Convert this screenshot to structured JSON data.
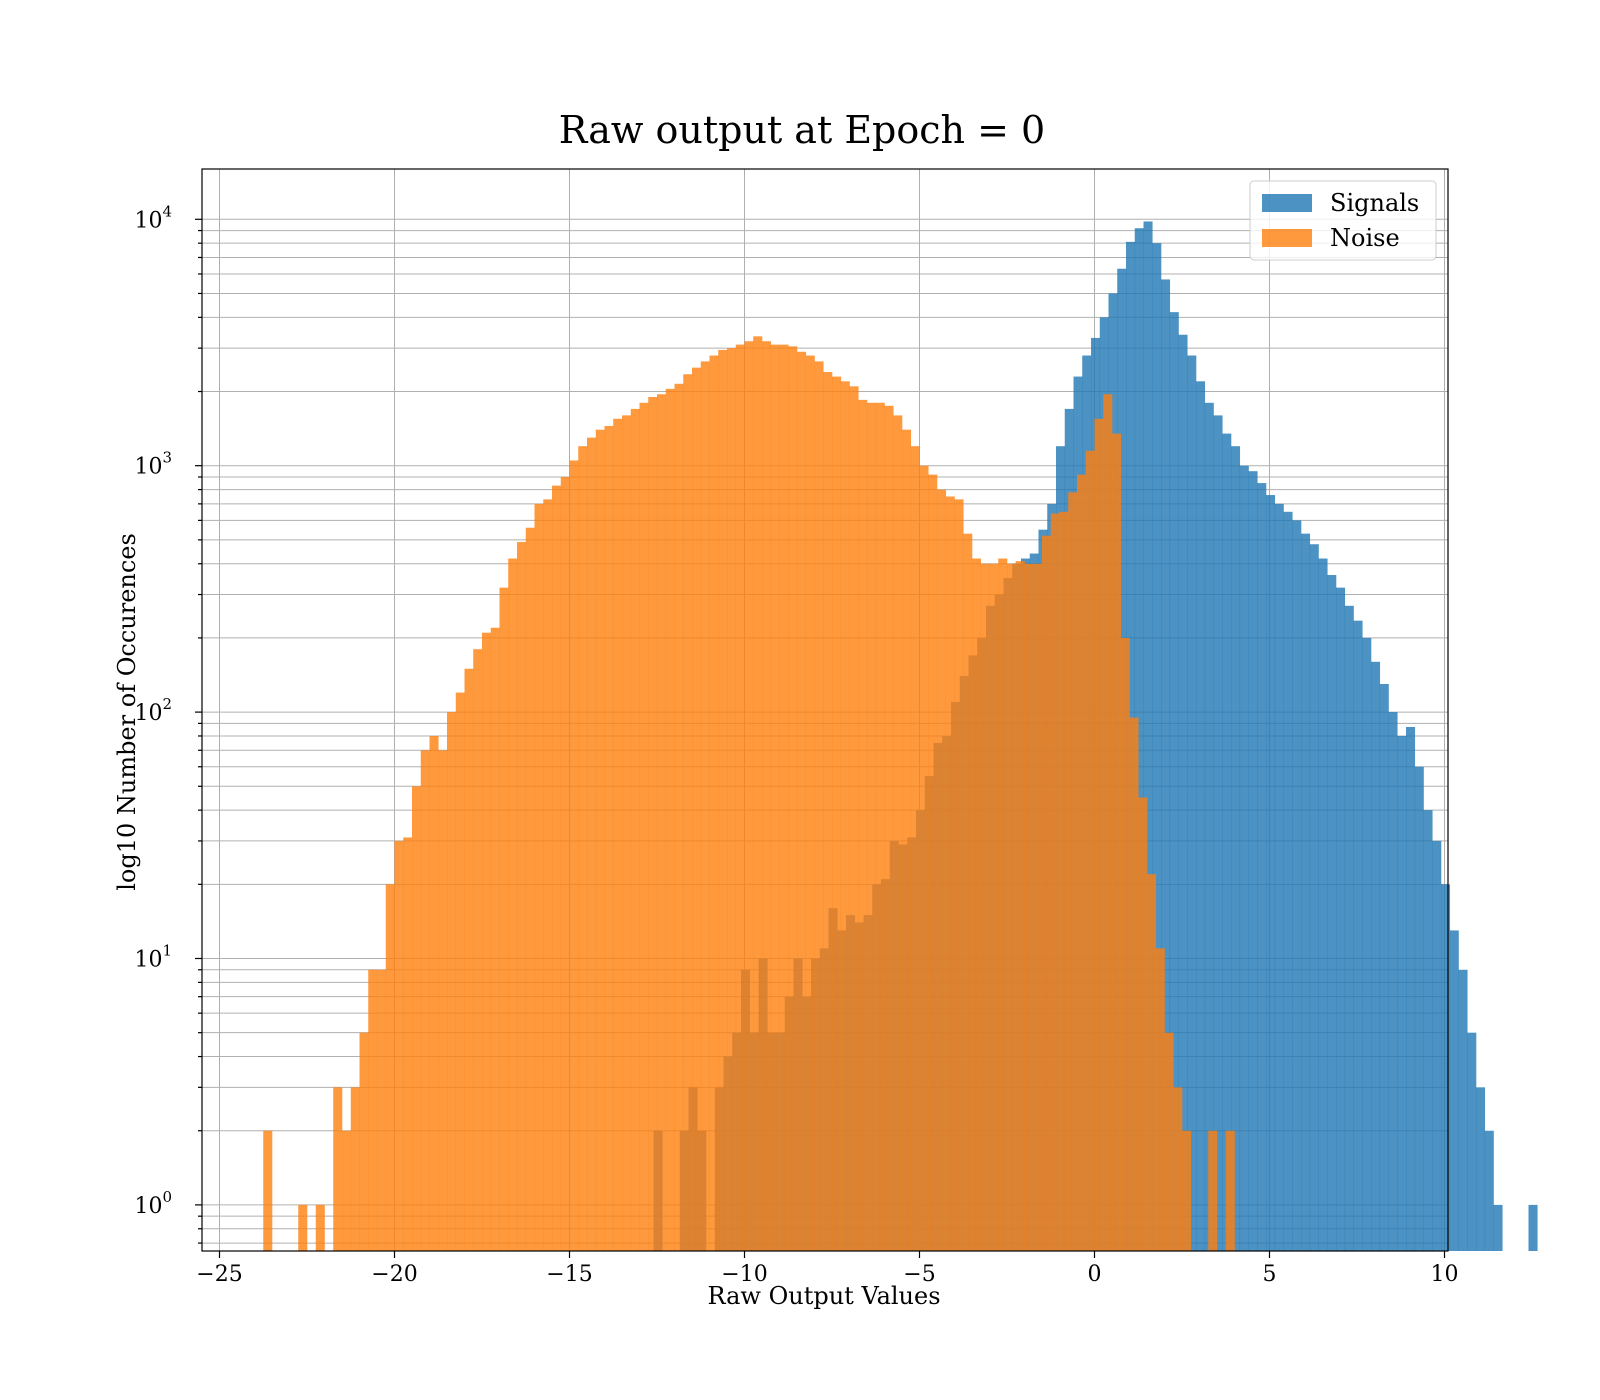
{
  "chart_data": {
    "type": "bar",
    "title": "Raw output at Epoch = 0",
    "xlabel": "Raw Output Values",
    "ylabel": "log10 Number of Occurences",
    "xlim": [
      -25.5,
      10.1
    ],
    "ylim": [
      0.65,
      16000
    ],
    "y_scale": "log",
    "grid": true,
    "legend_position": "top-right",
    "bin_width": 0.25,
    "x_ticks": [
      {
        "value": -25,
        "label": "−25"
      },
      {
        "value": -20,
        "label": "−20"
      },
      {
        "value": -15,
        "label": "−15"
      },
      {
        "value": -10,
        "label": "−10"
      },
      {
        "value": -5,
        "label": "−5"
      },
      {
        "value": 0,
        "label": "0"
      },
      {
        "value": 5,
        "label": "5"
      },
      {
        "value": 10,
        "label": "10"
      }
    ],
    "y_ticks": [
      {
        "value": 1,
        "base": "10",
        "exp": "0"
      },
      {
        "value": 10,
        "base": "10",
        "exp": "1"
      },
      {
        "value": 100,
        "base": "10",
        "exp": "2"
      },
      {
        "value": 1000,
        "base": "10",
        "exp": "3"
      },
      {
        "value": 10000,
        "base": "10",
        "exp": "4"
      }
    ],
    "series": [
      {
        "name": "Signals",
        "color": "#1f77b4",
        "opacity": 0.8,
        "bin_start": -12.6,
        "values": [
          2,
          0,
          0,
          2,
          3,
          2,
          0,
          3,
          4,
          5,
          9,
          5,
          10,
          5,
          5,
          7,
          10,
          7,
          10,
          11,
          16,
          13,
          15,
          14,
          15,
          20,
          21,
          30,
          29,
          31,
          40,
          55,
          75,
          80,
          110,
          140,
          170,
          200,
          270,
          300,
          350,
          400,
          420,
          440,
          550,
          700,
          1200,
          1700,
          2300,
          2800,
          3300,
          4000,
          5000,
          6300,
          8100,
          9200,
          9800,
          8000,
          5700,
          4200,
          3400,
          2800,
          2200,
          1800,
          1600,
          1350,
          1200,
          1000,
          950,
          850,
          760,
          700,
          650,
          600,
          530,
          480,
          420,
          360,
          320,
          270,
          235,
          200,
          160,
          130,
          100,
          80,
          87,
          60,
          40,
          30,
          20,
          13,
          9,
          5,
          3,
          2,
          1,
          0,
          0,
          0,
          1
        ]
      },
      {
        "name": "Noise",
        "color": "#ff7f0e",
        "opacity": 0.8,
        "bin_start": -23.75,
        "values": [
          2,
          0,
          0,
          0,
          1,
          0,
          1,
          0,
          3,
          2,
          3,
          5,
          9,
          9,
          20,
          30,
          31,
          50,
          70,
          80,
          70,
          100,
          120,
          150,
          180,
          210,
          220,
          320,
          420,
          490,
          560,
          700,
          730,
          830,
          900,
          1050,
          1200,
          1300,
          1400,
          1450,
          1550,
          1600,
          1700,
          1800,
          1900,
          1950,
          2050,
          2150,
          2350,
          2500,
          2650,
          2800,
          2950,
          3000,
          3100,
          3200,
          3350,
          3200,
          3100,
          3100,
          3050,
          2900,
          2800,
          2650,
          2400,
          2300,
          2200,
          2100,
          1850,
          1800,
          1800,
          1750,
          1600,
          1400,
          1200,
          1000,
          920,
          800,
          750,
          730,
          530,
          420,
          400,
          400,
          420,
          400,
          410,
          400,
          400,
          520,
          640,
          650,
          780,
          920,
          1150,
          1550,
          1950,
          1350,
          200,
          95,
          45,
          22,
          11,
          5,
          3,
          2,
          0,
          0,
          2,
          0,
          2
        ]
      }
    ]
  }
}
